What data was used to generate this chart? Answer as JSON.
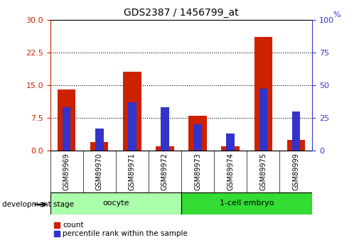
{
  "title": "GDS2387 / 1456799_at",
  "samples": [
    "GSM89969",
    "GSM89970",
    "GSM89971",
    "GSM89972",
    "GSM89973",
    "GSM89974",
    "GSM89975",
    "GSM89999"
  ],
  "count": [
    14.0,
    2.0,
    18.0,
    1.0,
    8.0,
    1.0,
    26.0,
    2.5
  ],
  "percentile_raw": [
    33,
    17,
    37,
    33,
    20,
    13,
    47,
    30
  ],
  "groups": [
    {
      "label": "oocyte",
      "start": 0,
      "end": 4,
      "color": "#AAFFAA"
    },
    {
      "label": "1-cell embryo",
      "start": 4,
      "end": 8,
      "color": "#33DD33"
    }
  ],
  "bar_color_red": "#CC2200",
  "bar_color_blue": "#3333CC",
  "bar_width": 0.55,
  "ylim_left": [
    0,
    30
  ],
  "ylim_right": [
    0,
    100
  ],
  "yticks_left": [
    0,
    7.5,
    15,
    22.5,
    30
  ],
  "yticks_right": [
    0,
    25,
    50,
    75,
    100
  ],
  "left_tick_color": "#CC2200",
  "right_tick_color": "#3333CC",
  "grid_color": "black",
  "background_color": "#ffffff",
  "legend_count_label": "count",
  "legend_pct_label": "percentile rank within the sample",
  "dev_stage_label": "development stage"
}
